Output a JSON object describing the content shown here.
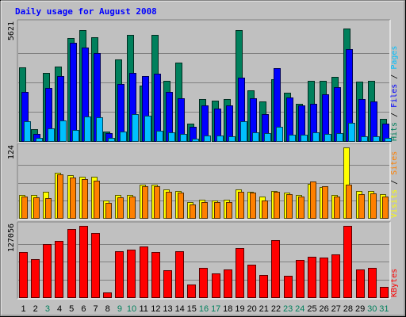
{
  "chart_data": {
    "type": "bar",
    "title": "Daily usage for August 2008",
    "categories": [
      "1",
      "2",
      "3",
      "4",
      "5",
      "6",
      "7",
      "8",
      "9",
      "10",
      "11",
      "12",
      "13",
      "14",
      "15",
      "16",
      "17",
      "18",
      "19",
      "20",
      "21",
      "22",
      "23",
      "24",
      "25",
      "26",
      "27",
      "28",
      "29",
      "30",
      "31"
    ],
    "weekend_days": [
      "3",
      "9",
      "10",
      "16",
      "17",
      "23",
      "24",
      "30",
      "31"
    ],
    "panels": [
      {
        "id": "hits",
        "ylabel_parts": [
          "Pages",
          "Files",
          "Hits"
        ],
        "ymax_label": "5621",
        "ylim": [
          0,
          5621
        ],
        "series": [
          {
            "name": "Hits",
            "color": "#00805c",
            "values": [
              3520,
              560,
              3250,
              3560,
              4930,
              5300,
              4980,
              450,
              3900,
              5100,
              2660,
              5100,
              2900,
              3750,
              820,
              2000,
              1950,
              2000,
              5300,
              2440,
              1900,
              2950,
              2300,
              1800,
              2900,
              2900,
              3080,
              5400,
              2860,
              2900,
              1060
            ]
          },
          {
            "name": "Files",
            "color": "#0000ff",
            "values": [
              2350,
              360,
              2560,
              3100,
              4700,
              4480,
              4200,
              380,
              2740,
              3250,
              3100,
              3240,
              2350,
              2060,
              700,
              1700,
              1560,
              1700,
              3020,
              2040,
              1300,
              3480,
              2070,
              1700,
              1780,
              2250,
              2600,
              4420,
              2030,
              1900,
              840
            ]
          },
          {
            "name": "Pages",
            "color": "#00c0ff",
            "values": [
              960,
              140,
              620,
              1000,
              550,
              1160,
              1150,
              140,
              460,
              1300,
              1230,
              480,
              420,
              360,
              110,
              270,
              260,
              240,
              960,
              430,
              390,
              670,
              300,
              310,
              400,
              360,
              390,
              860,
              240,
              230,
              170
            ]
          }
        ]
      },
      {
        "id": "visits",
        "ylabel_parts": [
          "Sites",
          "Visits"
        ],
        "ymax_label": "124",
        "ylim": [
          0,
          124
        ],
        "series": [
          {
            "name": "Visits",
            "color": "#ffff00",
            "values": [
              40,
              40,
              46,
              80,
              75,
              72,
              72,
              30,
              40,
              40,
              58,
              58,
              50,
              48,
              28,
              32,
              30,
              32,
              50,
              46,
              38,
              48,
              44,
              40,
              60,
              54,
              40,
              124,
              48,
              48,
              42
            ]
          },
          {
            "name": "Sites",
            "color": "#ff8000",
            "values": [
              37,
              36,
              35,
              76,
              71,
              68,
              66,
              26,
              36,
              38,
              56,
              56,
              46,
              45,
              24,
              28,
              28,
              28,
              46,
              44,
              30,
              46,
              42,
              38,
              64,
              56,
              38,
              58,
              42,
              43,
              38
            ]
          }
        ]
      },
      {
        "id": "kbytes",
        "ylabel_parts": [
          "KBytes"
        ],
        "ymax_label": "127056",
        "ylim": [
          0,
          127056
        ],
        "series": [
          {
            "name": "KBytes",
            "color": "#ff0000",
            "values": [
              80000,
              68000,
              95000,
              100000,
              122000,
              127056,
              115000,
              9000,
              82000,
              84000,
              90000,
              80000,
              48000,
              82000,
              22000,
              52000,
              42000,
              50000,
              88000,
              58000,
              40000,
              102000,
              38000,
              66000,
              72000,
              70000,
              76000,
              127056,
              50000,
              52000,
              18000
            ]
          }
        ]
      }
    ]
  }
}
